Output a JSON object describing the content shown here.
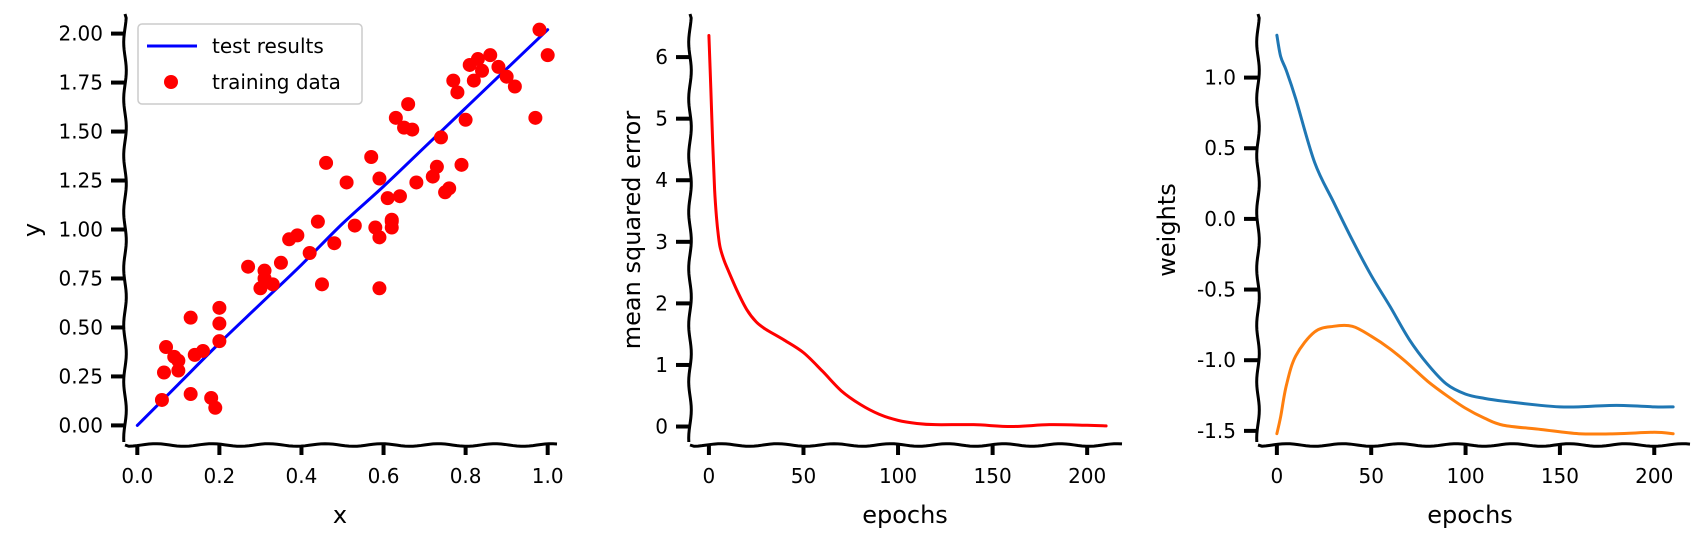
{
  "chart_data": [
    {
      "type": "scatter",
      "title": "",
      "xlabel": "x",
      "ylabel": "y",
      "xlim": [
        -0.03,
        1.03
      ],
      "ylim": [
        -0.1,
        2.1
      ],
      "xticks": [
        0.0,
        0.2,
        0.4,
        0.6,
        0.8,
        1.0
      ],
      "xtick_labels": [
        "0.0",
        "0.2",
        "0.4",
        "0.6",
        "0.8",
        "1.0"
      ],
      "yticks": [
        0.0,
        0.25,
        0.5,
        0.75,
        1.0,
        1.25,
        1.5,
        1.75,
        2.0
      ],
      "ytick_labels": [
        "0.00",
        "0.25",
        "0.50",
        "0.75",
        "1.00",
        "1.25",
        "1.50",
        "1.75",
        "2.00"
      ],
      "legend": {
        "placement": "upper-left",
        "entries": [
          "test results",
          "training data"
        ]
      },
      "series": [
        {
          "name": "test results",
          "kind": "line",
          "color": "#0000ff",
          "x": [
            0.0,
            0.1,
            0.2,
            0.3,
            0.4,
            0.5,
            0.6,
            0.7,
            0.8,
            0.9,
            1.0
          ],
          "y": [
            0.0,
            0.21,
            0.42,
            0.62,
            0.82,
            1.03,
            1.22,
            1.42,
            1.62,
            1.82,
            2.02
          ]
        },
        {
          "name": "training data",
          "kind": "scatter",
          "color": "#ff0000",
          "x": [
            0.06,
            0.07,
            0.065,
            0.09,
            0.1,
            0.1,
            0.13,
            0.13,
            0.14,
            0.16,
            0.18,
            0.19,
            0.2,
            0.2,
            0.2,
            0.27,
            0.3,
            0.31,
            0.31,
            0.33,
            0.35,
            0.37,
            0.39,
            0.42,
            0.44,
            0.45,
            0.46,
            0.48,
            0.51,
            0.53,
            0.57,
            0.58,
            0.59,
            0.59,
            0.59,
            0.61,
            0.62,
            0.62,
            0.62,
            0.63,
            0.64,
            0.65,
            0.66,
            0.67,
            0.68,
            0.72,
            0.73,
            0.74,
            0.75,
            0.76,
            0.77,
            0.78,
            0.79,
            0.8,
            0.81,
            0.82,
            0.83,
            0.84,
            0.86,
            0.88,
            0.9,
            0.92,
            0.97,
            0.98,
            1.0
          ],
          "y": [
            0.13,
            0.4,
            0.27,
            0.35,
            0.33,
            0.28,
            0.55,
            0.16,
            0.36,
            0.38,
            0.14,
            0.09,
            0.43,
            0.52,
            0.6,
            0.81,
            0.7,
            0.75,
            0.79,
            0.72,
            0.83,
            0.95,
            0.97,
            0.88,
            1.04,
            0.72,
            1.34,
            0.93,
            1.24,
            1.02,
            1.37,
            1.01,
            1.26,
            0.96,
            0.7,
            1.16,
            1.04,
            1.05,
            1.01,
            1.57,
            1.17,
            1.52,
            1.64,
            1.51,
            1.24,
            1.27,
            1.32,
            1.47,
            1.19,
            1.21,
            1.76,
            1.7,
            1.33,
            1.56,
            1.84,
            1.76,
            1.87,
            1.81,
            1.89,
            1.83,
            1.78,
            1.73,
            1.57,
            2.02,
            1.89
          ]
        }
      ]
    },
    {
      "type": "line",
      "title": "",
      "xlabel": "epochs",
      "ylabel": "mean squared error",
      "xlim": [
        -10,
        220
      ],
      "ylim": [
        -0.3,
        6.7
      ],
      "xticks": [
        0,
        50,
        100,
        150,
        200
      ],
      "xtick_labels": [
        "0",
        "50",
        "100",
        "150",
        "200"
      ],
      "yticks": [
        0,
        1,
        2,
        3,
        4,
        5,
        6
      ],
      "ytick_labels": [
        "0",
        "1",
        "2",
        "3",
        "4",
        "5",
        "6"
      ],
      "series": [
        {
          "color": "#ff0000",
          "x": [
            0,
            1,
            2,
            3,
            4,
            5,
            6,
            8,
            10,
            15,
            20,
            25,
            30,
            40,
            50,
            60,
            70,
            80,
            90,
            100,
            110,
            120,
            140,
            160,
            180,
            200,
            210
          ],
          "y": [
            6.35,
            5.5,
            4.6,
            3.85,
            3.4,
            3.1,
            2.9,
            2.7,
            2.55,
            2.2,
            1.9,
            1.7,
            1.58,
            1.4,
            1.2,
            0.9,
            0.58,
            0.36,
            0.2,
            0.1,
            0.05,
            0.03,
            0.03,
            0.0,
            0.03,
            0.02,
            0.01
          ]
        }
      ]
    },
    {
      "type": "line",
      "title": "",
      "xlabel": "epochs",
      "ylabel": "weights",
      "xlim": [
        -10,
        220
      ],
      "ylim": [
        -1.6,
        1.45
      ],
      "xticks": [
        0,
        50,
        100,
        150,
        200
      ],
      "xtick_labels": [
        "0",
        "50",
        "100",
        "150",
        "200"
      ],
      "yticks": [
        1.0,
        0.5,
        0.0,
        -0.5,
        -1.0,
        -1.5
      ],
      "ytick_labels": [
        "1.0",
        "0.5",
        "0.0",
        "-0.5",
        "-1.0",
        "-1.5"
      ],
      "series": [
        {
          "color": "#1f77b4",
          "x": [
            0,
            2,
            5,
            10,
            20,
            30,
            40,
            50,
            60,
            70,
            80,
            90,
            100,
            110,
            120,
            140,
            150,
            160,
            180,
            200,
            210
          ],
          "y": [
            1.3,
            1.15,
            1.05,
            0.85,
            0.4,
            0.12,
            -0.15,
            -0.4,
            -0.62,
            -0.85,
            -1.03,
            -1.17,
            -1.24,
            -1.27,
            -1.29,
            -1.32,
            -1.33,
            -1.33,
            -1.32,
            -1.33,
            -1.33
          ]
        },
        {
          "color": "#ff7f0e",
          "x": [
            0,
            2,
            5,
            10,
            20,
            30,
            40,
            50,
            60,
            70,
            80,
            90,
            100,
            110,
            120,
            140,
            160,
            180,
            200,
            210
          ],
          "y": [
            -1.52,
            -1.4,
            -1.18,
            -0.97,
            -0.8,
            -0.76,
            -0.76,
            -0.83,
            -0.92,
            -1.03,
            -1.15,
            -1.25,
            -1.34,
            -1.41,
            -1.46,
            -1.49,
            -1.52,
            -1.52,
            -1.51,
            -1.52
          ]
        }
      ]
    }
  ]
}
